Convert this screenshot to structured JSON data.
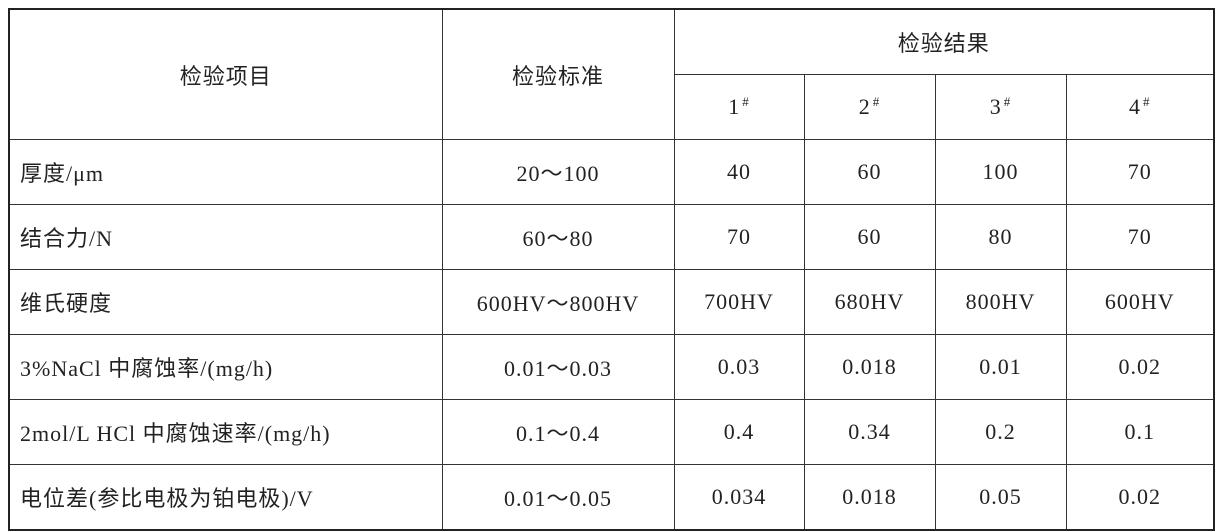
{
  "header": {
    "item": "检验项目",
    "standard": "检验标准",
    "results": "检验结果",
    "samples": [
      {
        "number": "1",
        "mark": "#"
      },
      {
        "number": "2",
        "mark": "#"
      },
      {
        "number": "3",
        "mark": "#"
      },
      {
        "number": "4",
        "mark": "#"
      }
    ]
  },
  "table": {
    "rows": [
      [
        "厚度/μm",
        "20～100",
        "40",
        "60",
        "100",
        "70"
      ],
      [
        "结合力/N",
        "60～80",
        "70",
        "60",
        "80",
        "70"
      ],
      [
        "维氏硬度",
        "600HV～800HV",
        "700HV",
        "680HV",
        "800HV",
        "600HV"
      ],
      [
        "3%NaCl 中腐蚀率/(mg/h)",
        "0.01～0.03",
        "0.03",
        "0.018",
        "0.01",
        "0.02"
      ],
      [
        "2mol/L HCl 中腐蚀速率/(mg/h)",
        "0.1～0.4",
        "0.4",
        "0.34",
        "0.2",
        "0.1"
      ],
      [
        "电位差(参比电极为铂电极)/V",
        "0.01～0.05",
        "0.034",
        "0.018",
        "0.05",
        "0.02"
      ]
    ]
  }
}
